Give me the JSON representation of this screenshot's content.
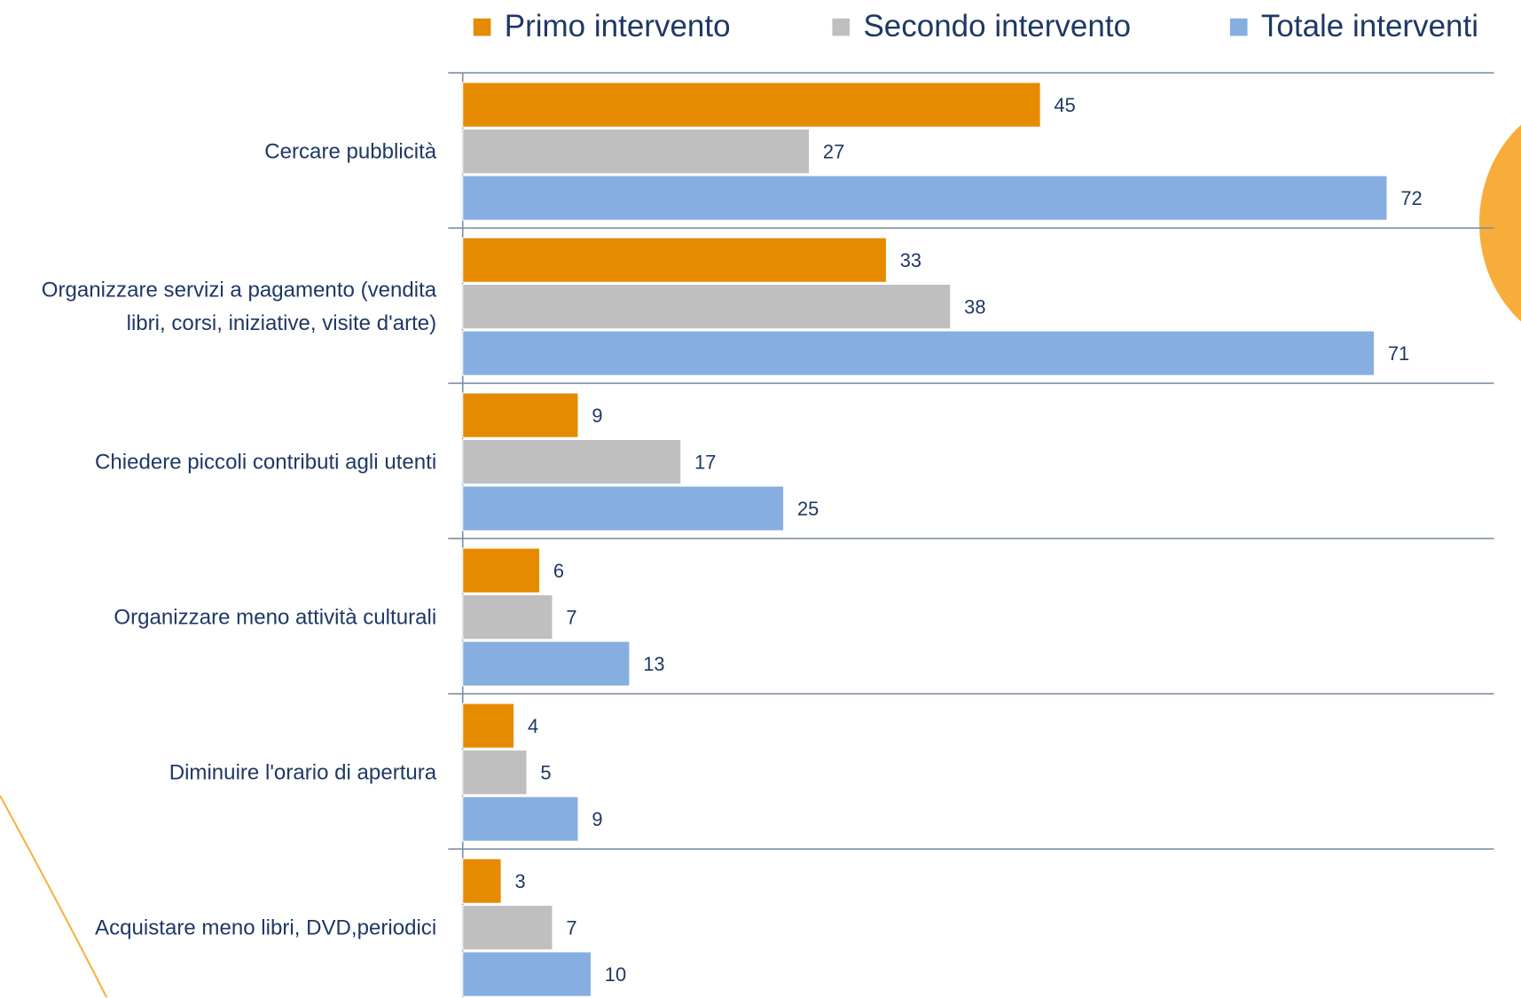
{
  "chart_data": {
    "type": "hbar",
    "categories": [
      "Cercare pubblicità",
      "Organizzare servizi a pagamento (vendita libri, corsi, iniziative, visite d'arte)",
      "Chiedere piccoli contributi agli utenti",
      "Organizzare meno attività culturali",
      "Diminuire l'orario di apertura",
      "Acquistare meno libri, DVD,periodici"
    ],
    "series": [
      {
        "name": "Primo intervento",
        "color": "#e68a00",
        "values": [
          45,
          33,
          9,
          6,
          4,
          3
        ]
      },
      {
        "name": "Secondo intervento",
        "color": "#bfbfbf",
        "values": [
          27,
          38,
          17,
          7,
          5,
          7
        ]
      },
      {
        "name": "Totale interventi",
        "color": "#86aee0",
        "values": [
          72,
          71,
          25,
          13,
          9,
          10
        ]
      }
    ],
    "legend": "top"
  }
}
